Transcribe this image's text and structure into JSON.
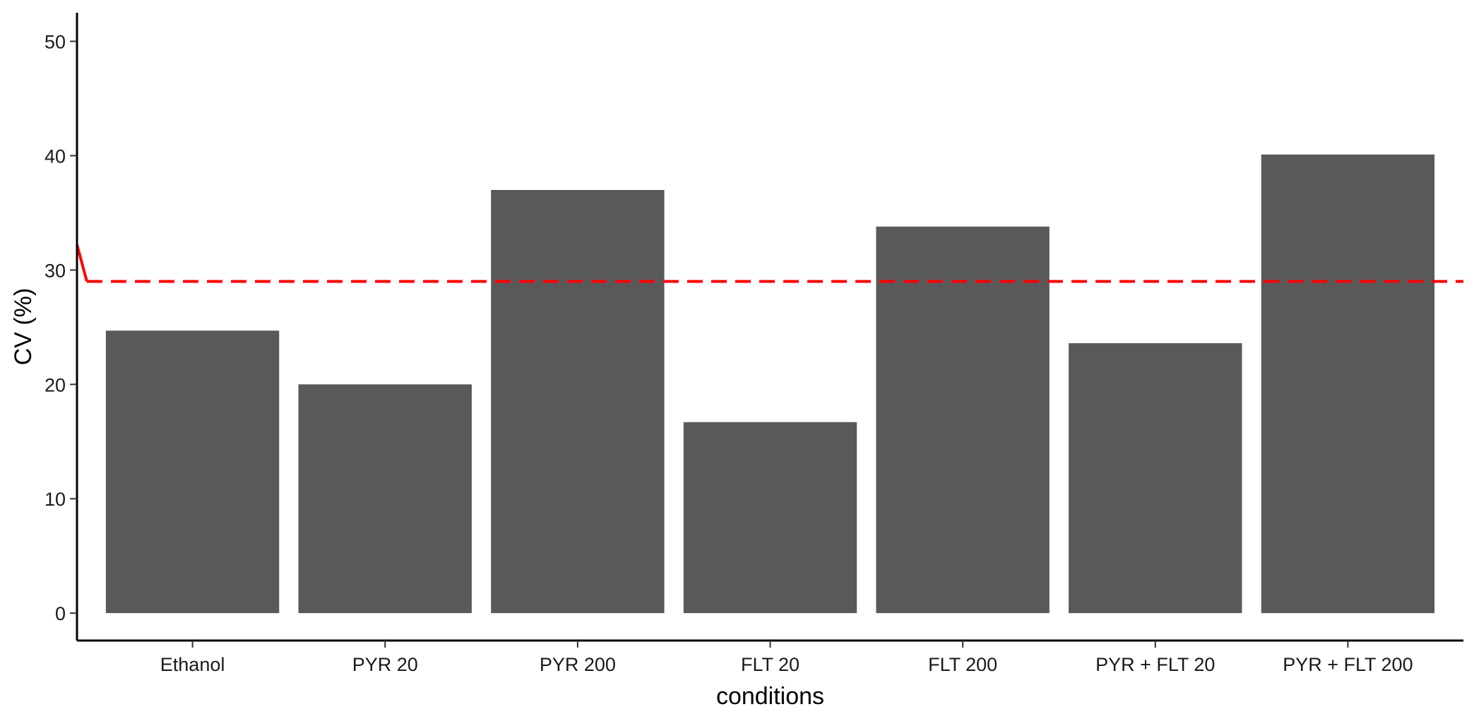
{
  "chart_data": {
    "type": "bar",
    "categories": [
      "Ethanol",
      "PYR 20",
      "PYR 200",
      "FLT 20",
      "FLT 200",
      "PYR + FLT 20",
      "PYR + FLT 200"
    ],
    "values": [
      24.7,
      20.0,
      37.0,
      16.7,
      33.8,
      23.6,
      40.1
    ],
    "xlabel": "conditions",
    "ylabel": "CV (%)",
    "ylim": [
      -2.4,
      52.5
    ],
    "yticks": [
      0,
      10,
      20,
      30,
      40,
      50
    ],
    "reference_line": {
      "value": 29,
      "style": "dashed",
      "color": "#ff0000"
    },
    "bar_color": "#595959",
    "grid": false,
    "legend": "none"
  }
}
